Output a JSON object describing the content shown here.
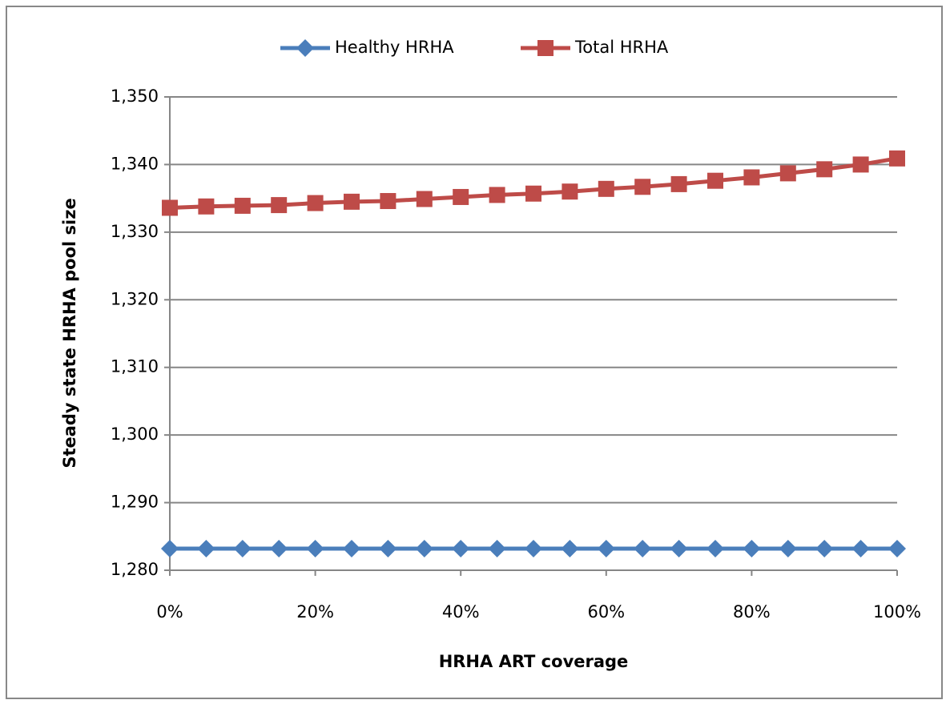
{
  "chart_data": {
    "type": "line",
    "x": [
      0,
      5,
      10,
      15,
      20,
      25,
      30,
      35,
      40,
      45,
      50,
      55,
      60,
      65,
      70,
      75,
      80,
      85,
      90,
      95,
      100
    ],
    "series": [
      {
        "name": "Healthy HRHA",
        "color": "#4a7ebb",
        "marker": "diamond",
        "values": [
          1283.2,
          1283.2,
          1283.2,
          1283.2,
          1283.2,
          1283.2,
          1283.2,
          1283.2,
          1283.2,
          1283.2,
          1283.2,
          1283.2,
          1283.2,
          1283.2,
          1283.2,
          1283.2,
          1283.2,
          1283.2,
          1283.2,
          1283.2,
          1283.2
        ]
      },
      {
        "name": "Total HRHA",
        "color": "#be4b48",
        "marker": "square",
        "values": [
          1333.6,
          1333.8,
          1333.9,
          1334.0,
          1334.3,
          1334.5,
          1334.6,
          1334.9,
          1335.2,
          1335.5,
          1335.7,
          1336.0,
          1336.4,
          1336.7,
          1337.1,
          1337.6,
          1338.1,
          1338.7,
          1339.3,
          1340.0,
          1340.9
        ]
      }
    ],
    "xlabel": "HRHA ART coverage",
    "ylabel": "Steady state HRHA pool size",
    "xlim": [
      0,
      100
    ],
    "xticks": [
      {
        "value": 0,
        "label": "0%"
      },
      {
        "value": 20,
        "label": "20%"
      },
      {
        "value": 40,
        "label": "40%"
      },
      {
        "value": 60,
        "label": "60%"
      },
      {
        "value": 80,
        "label": "80%"
      },
      {
        "value": 100,
        "label": "100%"
      }
    ],
    "ylim": [
      1280,
      1350
    ],
    "yticks": [
      {
        "value": 1280,
        "label": "1,280"
      },
      {
        "value": 1290,
        "label": "1,290"
      },
      {
        "value": 1300,
        "label": "1,300"
      },
      {
        "value": 1310,
        "label": "1,310"
      },
      {
        "value": 1320,
        "label": "1,320"
      },
      {
        "value": 1330,
        "label": "1,330"
      },
      {
        "value": 1340,
        "label": "1,340"
      },
      {
        "value": 1350,
        "label": "1,350"
      }
    ],
    "grid": true,
    "legend": "top"
  }
}
